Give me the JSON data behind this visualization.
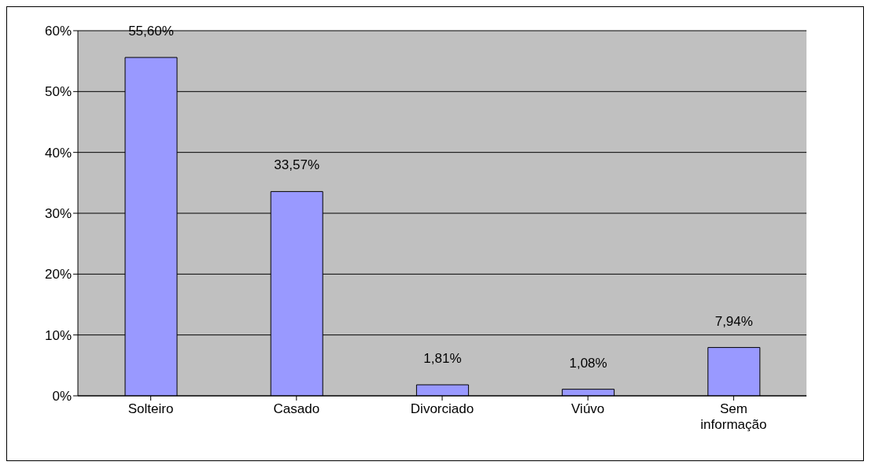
{
  "chart_data": {
    "type": "bar",
    "categories": [
      "Solteiro",
      "Casado",
      "Divorciado",
      "Viúvo",
      "Sem informação"
    ],
    "values": [
      55.6,
      33.57,
      1.81,
      1.08,
      7.94
    ],
    "value_labels": [
      "55,60%",
      "33,57%",
      "1,81%",
      "1,08%",
      "7,94%"
    ],
    "color": "#9999ff",
    "ylim": [
      0,
      60
    ],
    "yticks": [
      {
        "value": 0,
        "label": "0%"
      },
      {
        "value": 10,
        "label": "10%"
      },
      {
        "value": 20,
        "label": "20%"
      },
      {
        "value": 30,
        "label": "30%"
      },
      {
        "value": 40,
        "label": "40%"
      },
      {
        "value": 50,
        "label": "50%"
      },
      {
        "value": 60,
        "label": "60%"
      }
    ],
    "grid": "y"
  }
}
